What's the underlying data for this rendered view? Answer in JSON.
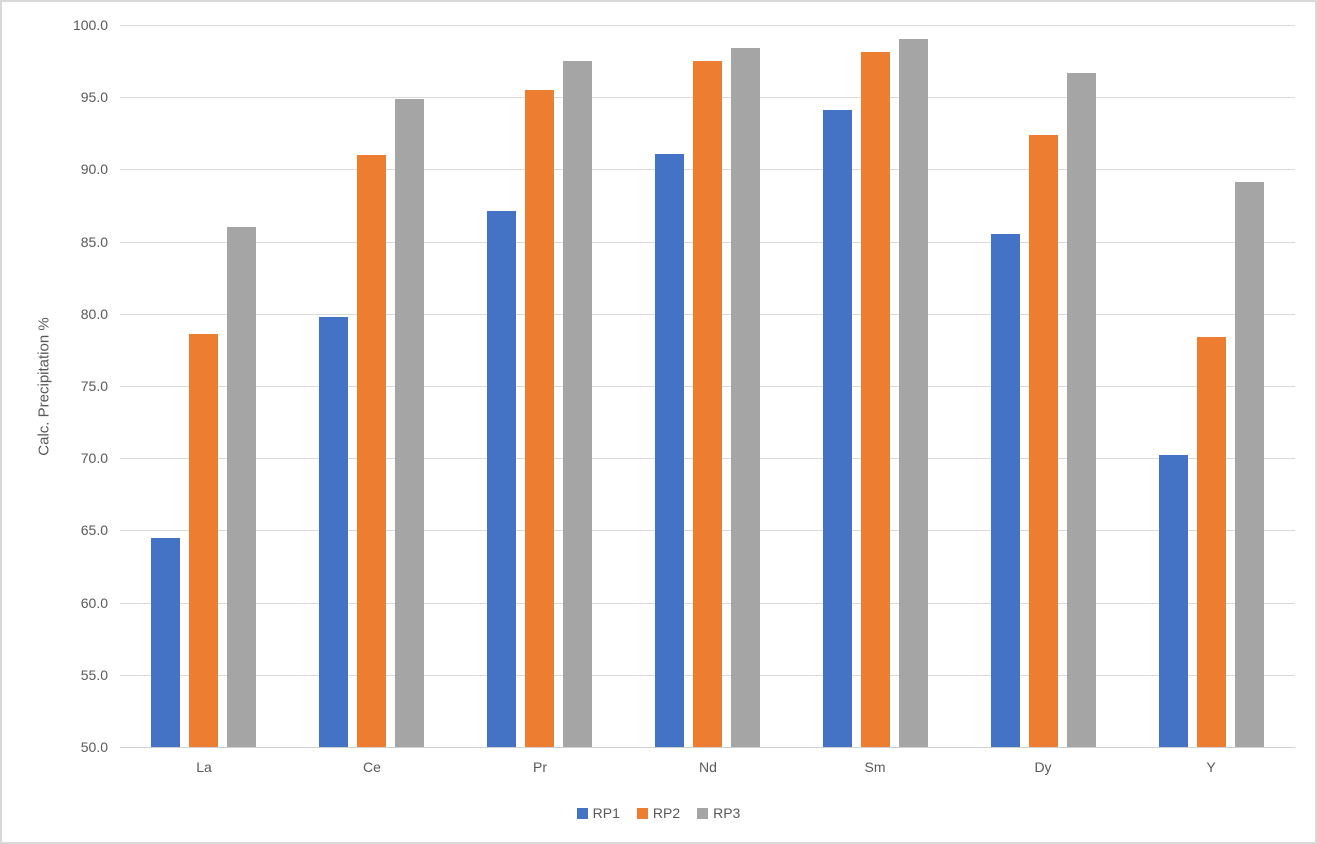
{
  "chart_data": {
    "type": "bar",
    "title": "",
    "xlabel": "",
    "ylabel": "Calc. Precipitation %",
    "categories": [
      "La",
      "Ce",
      "Pr",
      "Nd",
      "Sm",
      "Dy",
      "Y"
    ],
    "series": [
      {
        "name": "RP1",
        "color": "#4472C4",
        "values": [
          64.5,
          79.8,
          87.1,
          91.1,
          94.1,
          85.5,
          70.2
        ]
      },
      {
        "name": "RP2",
        "color": "#ED7D31",
        "values": [
          78.6,
          91.0,
          95.5,
          97.5,
          98.1,
          92.4,
          78.4
        ]
      },
      {
        "name": "RP3",
        "color": "#A5A5A5",
        "values": [
          86.0,
          94.9,
          97.5,
          98.4,
          99.0,
          96.7,
          89.1
        ]
      }
    ],
    "ylim": [
      50.0,
      100.0
    ],
    "ytick_step": 5.0,
    "ytick_decimals": 1,
    "grid": "horizontal",
    "legend_position": "bottom"
  },
  "styles": {
    "bar_colors": {
      "RP1": "#4472C4",
      "RP2": "#ED7D31",
      "RP3": "#A5A5A5"
    },
    "gridline_color": "#d9d9d9",
    "axis_line_color": "#d0d0d0",
    "axis_text_color": "#595959",
    "border_color": "#d9d9d9",
    "background_color": "#ffffff"
  }
}
